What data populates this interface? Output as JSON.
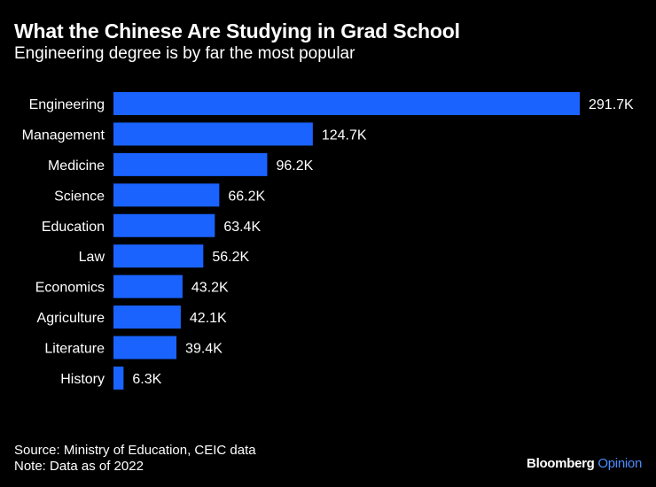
{
  "colors": {
    "background": "#000000",
    "bar": "#1a63ff",
    "text": "#ffffff",
    "brand_accent": "#4d8dff"
  },
  "header": {
    "title": "What the Chinese Are Studying in Grad School",
    "subtitle": "Engineering degree is by far the most popular"
  },
  "footer": {
    "source": "Source: Ministry of Education, CEIC data",
    "note": "Note: Data as of 2022"
  },
  "brand": {
    "name": "Bloomberg",
    "suffix": "Opinion"
  },
  "chart_data": {
    "type": "bar",
    "orientation": "horizontal",
    "title": "What the Chinese Are Studying in Grad School",
    "subtitle": "Engineering degree is by far the most popular",
    "xlabel": "",
    "ylabel": "",
    "unit": "thousands",
    "xlim": [
      0,
      291.7
    ],
    "grid": false,
    "categories": [
      "Engineering",
      "Management",
      "Medicine",
      "Science",
      "Education",
      "Law",
      "Economics",
      "Agriculture",
      "Literature",
      "History"
    ],
    "values": [
      291.7,
      124.7,
      96.2,
      66.2,
      63.4,
      56.2,
      43.2,
      42.1,
      39.4,
      6.3
    ],
    "value_labels": [
      "291.7K",
      "124.7K",
      "96.2K",
      "66.2K",
      "63.4K",
      "56.2K",
      "43.2K",
      "42.1K",
      "39.4K",
      "6.3K"
    ]
  }
}
